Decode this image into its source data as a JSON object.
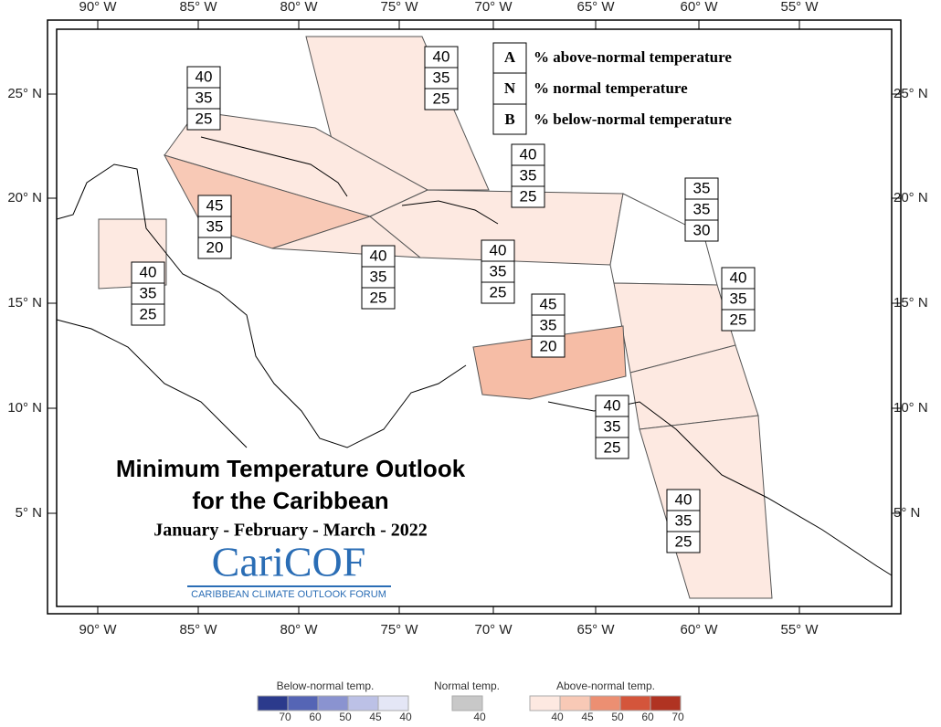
{
  "map": {
    "lon_labels": [
      "90° W",
      "85° W",
      "80° W",
      "75° W",
      "70° W",
      "65° W",
      "60° W",
      "55° W"
    ],
    "lat_labels": [
      "25° N",
      "20° N",
      "15° N",
      "10° N",
      "5° N"
    ],
    "key": [
      {
        "letter": "A",
        "text": "% above-normal temperature"
      },
      {
        "letter": "N",
        "text": "% normal temperature"
      },
      {
        "letter": "B",
        "text": "% below-normal temperature"
      }
    ],
    "regions": [
      {
        "above": 40,
        "normal": 35,
        "below": 25
      },
      {
        "above": 40,
        "normal": 35,
        "below": 25
      },
      {
        "above": 40,
        "normal": 35,
        "below": 25
      },
      {
        "above": 45,
        "normal": 35,
        "below": 20
      },
      {
        "above": 40,
        "normal": 35,
        "below": 25
      },
      {
        "above": 40,
        "normal": 35,
        "below": 25
      },
      {
        "above": 40,
        "normal": 35,
        "below": 25
      },
      {
        "above": 35,
        "normal": 35,
        "below": 30
      },
      {
        "above": 40,
        "normal": 35,
        "below": 25
      },
      {
        "above": 45,
        "normal": 35,
        "below": 20
      },
      {
        "above": 40,
        "normal": 35,
        "below": 25
      },
      {
        "above": 40,
        "normal": 35,
        "below": 25
      }
    ],
    "title": "Minimum Temperature Outlook",
    "title_line2": "for the Caribbean",
    "period": "January - February - March - 2022",
    "logo": "CariCOF",
    "logo_subtitle": "CARIBBEAN CLIMATE OUTLOOK FORUM",
    "color_legend": {
      "below": {
        "label": "Below-normal temp.",
        "ticks": [
          70,
          60,
          50,
          45,
          40
        ]
      },
      "normal": {
        "label": "Normal temp.",
        "ticks": [
          40
        ]
      },
      "above": {
        "label": "Above-normal temp.",
        "ticks": [
          40,
          45,
          50,
          60,
          70
        ]
      }
    }
  }
}
